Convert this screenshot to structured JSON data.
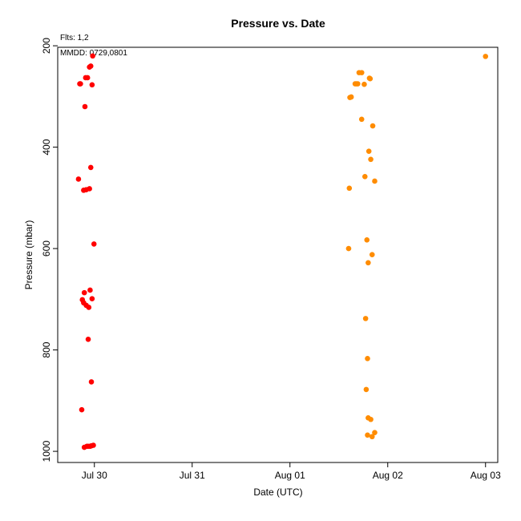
{
  "chart_data": {
    "type": "scatter",
    "title": "Pressure  vs. Date",
    "xlabel": "Date (UTC)",
    "ylabel": "Pressure (mbar)",
    "annotations": [
      "Flts: 1,2",
      "MMDD: 0729,0801"
    ],
    "x_axis": {
      "kind": "date",
      "range": [
        "2017-07-29T15:00:00",
        "2017-08-03T03:00:00"
      ],
      "ticks": [
        {
          "x": "2017-07-30T00:00:00",
          "label": "Jul 30"
        },
        {
          "x": "2017-07-31T00:00:00",
          "label": "Jul 31"
        },
        {
          "x": "2017-08-01T00:00:00",
          "label": "Aug 01"
        },
        {
          "x": "2017-08-02T00:00:00",
          "label": "Aug 02"
        },
        {
          "x": "2017-08-03T00:00:00",
          "label": "Aug 03"
        }
      ]
    },
    "y_axis": {
      "range": [
        203,
        1022
      ],
      "inverted": true,
      "ticks": [
        200,
        400,
        600,
        800,
        1000
      ]
    },
    "grid": false,
    "series": [
      {
        "color": "#ff0000",
        "points": [
          [
            "2017-07-29T20:06:00",
            463
          ],
          [
            "2017-07-29T20:25:00",
            275
          ],
          [
            "2017-07-29T20:35:00",
            275
          ],
          [
            "2017-07-29T20:54:00",
            918
          ],
          [
            "2017-07-29T21:03:00",
            701
          ],
          [
            "2017-07-29T21:22:00",
            707
          ],
          [
            "2017-07-29T21:22:00",
            485
          ],
          [
            "2017-07-29T21:32:00",
            687
          ],
          [
            "2017-07-29T21:32:00",
            992
          ],
          [
            "2017-07-29T21:41:00",
            320
          ],
          [
            "2017-07-29T21:51:00",
            263
          ],
          [
            "2017-07-29T22:00:00",
            484
          ],
          [
            "2017-07-29T22:00:00",
            712
          ],
          [
            "2017-07-29T22:10:00",
            990
          ],
          [
            "2017-07-29T22:19:00",
            263
          ],
          [
            "2017-07-29T22:29:00",
            779
          ],
          [
            "2017-07-29T22:29:00",
            990
          ],
          [
            "2017-07-29T22:38:00",
            716
          ],
          [
            "2017-07-29T22:48:00",
            242
          ],
          [
            "2017-07-29T22:48:00",
            482
          ],
          [
            "2017-07-29T22:57:00",
            682
          ],
          [
            "2017-07-29T22:57:00",
            990
          ],
          [
            "2017-07-29T23:07:00",
            240
          ],
          [
            "2017-07-29T23:07:00",
            440
          ],
          [
            "2017-07-29T23:16:00",
            863
          ],
          [
            "2017-07-29T23:16:00",
            989
          ],
          [
            "2017-07-29T23:26:00",
            699
          ],
          [
            "2017-07-29T23:26:00",
            277
          ],
          [
            "2017-07-29T23:35:00",
            220
          ],
          [
            "2017-07-29T23:45:00",
            988
          ],
          [
            "2017-07-29T23:54:00",
            591
          ]
        ]
      },
      {
        "color": "#ff8c00",
        "points": [
          [
            "2017-08-01T14:24:00",
            600
          ],
          [
            "2017-08-01T14:34:00",
            481
          ],
          [
            "2017-08-01T14:43:00",
            302
          ],
          [
            "2017-08-01T15:02:00",
            301
          ],
          [
            "2017-08-01T16:00:00",
            275
          ],
          [
            "2017-08-01T16:19:00",
            275
          ],
          [
            "2017-08-01T16:38:00",
            275
          ],
          [
            "2017-08-01T16:58:00",
            253
          ],
          [
            "2017-08-01T17:36:00",
            253
          ],
          [
            "2017-08-01T17:36:00",
            345
          ],
          [
            "2017-08-01T18:14:00",
            276
          ],
          [
            "2017-08-01T18:24:00",
            458
          ],
          [
            "2017-08-01T18:34:00",
            738
          ],
          [
            "2017-08-01T18:43:00",
            878
          ],
          [
            "2017-08-01T18:53:00",
            583
          ],
          [
            "2017-08-01T19:02:00",
            817
          ],
          [
            "2017-08-01T19:02:00",
            968
          ],
          [
            "2017-08-01T19:12:00",
            934
          ],
          [
            "2017-08-01T19:12:00",
            628
          ],
          [
            "2017-08-01T19:22:00",
            408
          ],
          [
            "2017-08-01T19:31:00",
            264
          ],
          [
            "2017-08-01T19:41:00",
            265
          ],
          [
            "2017-08-01T19:50:00",
            424
          ],
          [
            "2017-08-01T19:50:00",
            937
          ],
          [
            "2017-08-01T20:10:00",
            971
          ],
          [
            "2017-08-01T20:10:00",
            612
          ],
          [
            "2017-08-01T20:19:00",
            358
          ],
          [
            "2017-08-01T20:48:00",
            467
          ],
          [
            "2017-08-01T20:48:00",
            963
          ],
          [
            "2017-08-03T00:00:00",
            221
          ]
        ]
      }
    ]
  }
}
